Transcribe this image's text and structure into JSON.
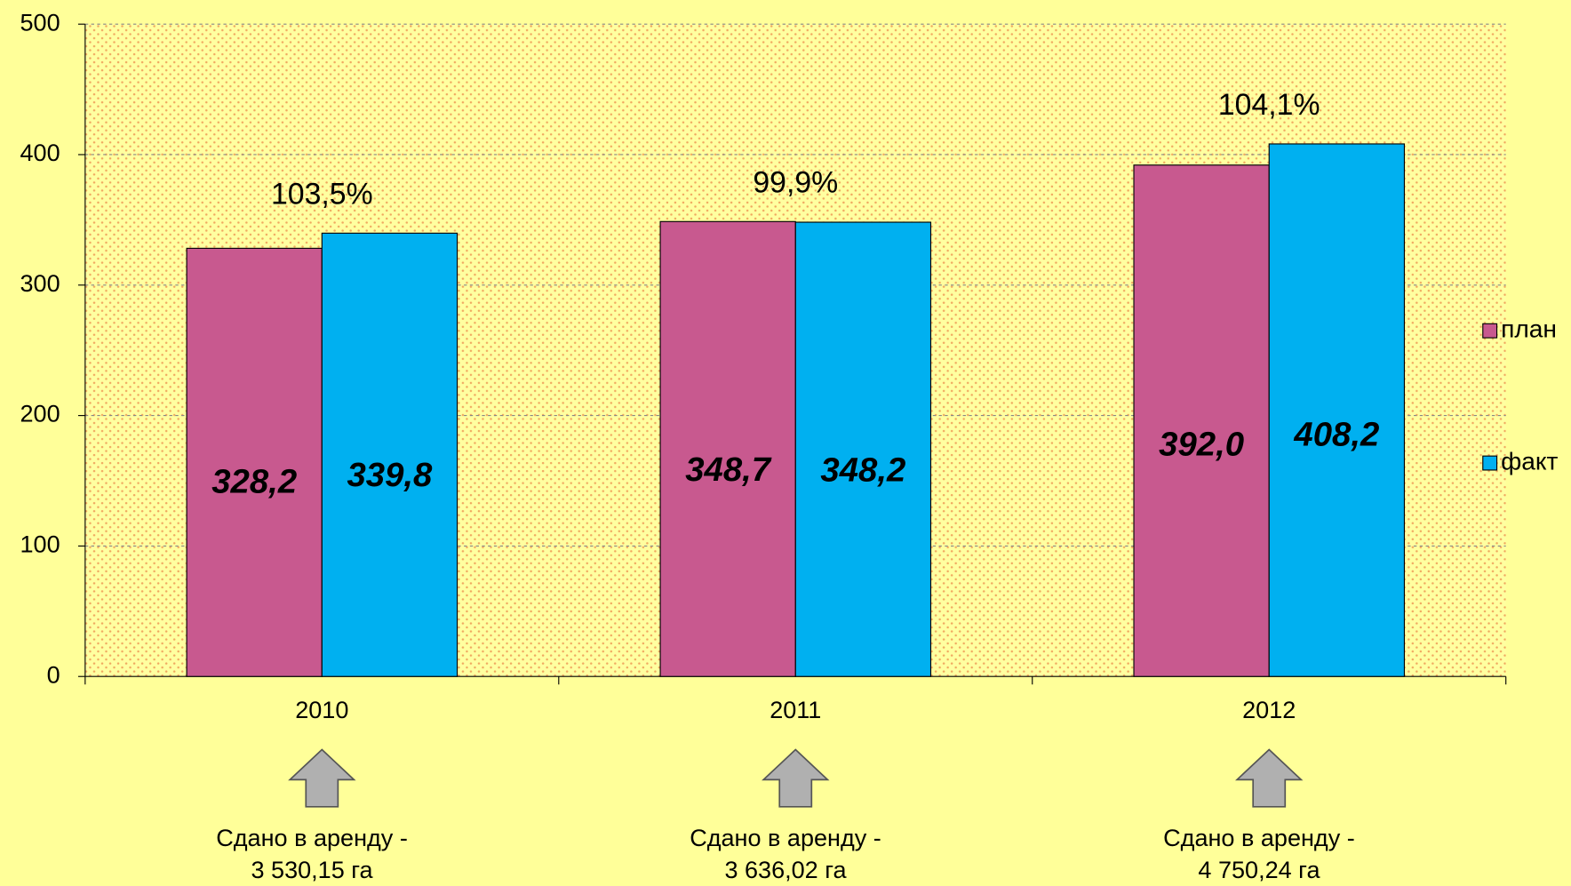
{
  "chart_data": {
    "type": "bar",
    "categories": [
      "2010",
      "2011",
      "2012"
    ],
    "series": [
      {
        "name": "план",
        "color": "#c8598f",
        "values": [
          328.2,
          348.7,
          392.0
        ],
        "value_labels": [
          "328,2",
          "348,7",
          "392,0"
        ]
      },
      {
        "name": "факт",
        "color": "#00b0f0",
        "values": [
          339.8,
          348.2,
          408.2
        ],
        "value_labels": [
          "339,8",
          "348,2",
          "408,2"
        ]
      }
    ],
    "annotations": [
      "103,5%",
      "99,9%",
      "104,1%"
    ],
    "notes": [
      [
        "Сдано в аренду -",
        "3 530,15 га"
      ],
      [
        "Сдано в аренду -",
        "3 636,02 га"
      ],
      [
        "Сдано в аренду -",
        "4 750,24 га"
      ]
    ],
    "ylim": [
      0,
      500
    ],
    "yticks": [
      0,
      100,
      200,
      300,
      400,
      500
    ],
    "grid": true,
    "legend": "right"
  }
}
